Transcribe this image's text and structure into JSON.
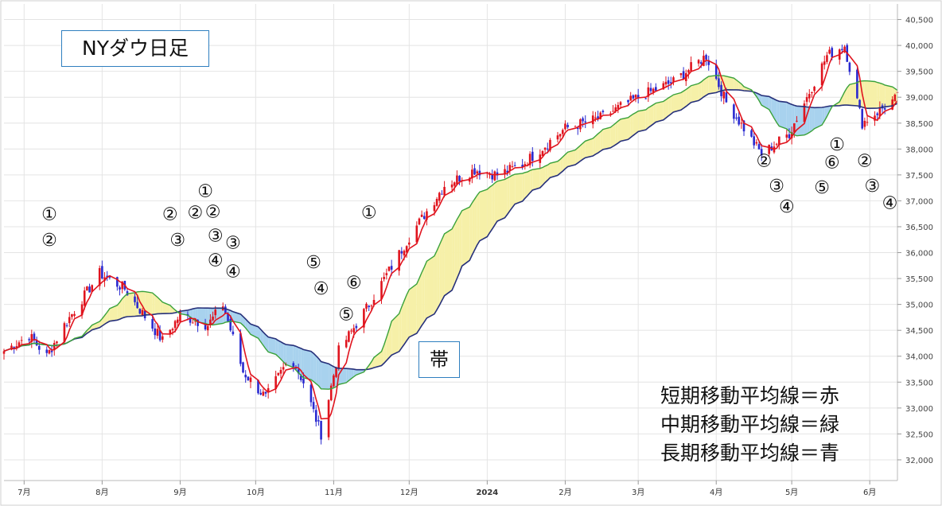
{
  "title": "NYダウ日足",
  "band_label": "帯",
  "legend_lines": [
    "短期移動平均線＝赤",
    "中期移動平均線＝緑",
    "長期移動平均線＝青"
  ],
  "colors": {
    "short_ma": "#e0141e",
    "mid_ma": "#3aa23a",
    "long_ma": "#26307a",
    "candle_up": "#e0141e",
    "candle_down": "#2a2ad0",
    "band_bull": "#f6f0a8",
    "band_bear": "#a8d2ee"
  },
  "chart_data": {
    "type": "candlestick",
    "x_ticks": [
      "7月",
      "8月",
      "9月",
      "10月",
      "11月",
      "12月",
      "2024",
      "2月",
      "3月",
      "4月",
      "5月",
      "6月"
    ],
    "y_ticks": [
      "40,500",
      "40,000",
      "39,500",
      "39,000",
      "38,500",
      "38,000",
      "37,500",
      "37,000",
      "36,500",
      "36,000",
      "35,500",
      "35,000",
      "34,500",
      "34,000",
      "33,500",
      "33,000",
      "32,500",
      "32,000"
    ],
    "ylim": [
      31600,
      40800
    ],
    "x_range": [
      "2023-06-23",
      "2024-06-12"
    ],
    "close_anchors": [
      [
        "2023-06-23",
        34100
      ],
      [
        "2023-07-03",
        34400
      ],
      [
        "2023-07-10",
        34000
      ],
      [
        "2023-07-17",
        34600
      ],
      [
        "2023-07-31",
        35600
      ],
      [
        "2023-08-10",
        35300
      ],
      [
        "2023-08-25",
        34300
      ],
      [
        "2023-09-01",
        34800
      ],
      [
        "2023-09-12",
        34600
      ],
      [
        "2023-09-18",
        35000
      ],
      [
        "2023-09-26",
        33700
      ],
      [
        "2023-10-05",
        33200
      ],
      [
        "2023-10-15",
        34000
      ],
      [
        "2023-10-20",
        33500
      ],
      [
        "2023-10-27",
        32500
      ],
      [
        "2023-11-03",
        34100
      ],
      [
        "2023-11-15",
        35000
      ],
      [
        "2023-12-01",
        36300
      ],
      [
        "2023-12-15",
        37300
      ],
      [
        "2023-12-27",
        37600
      ],
      [
        "2024-01-05",
        37500
      ],
      [
        "2024-01-15",
        37700
      ],
      [
        "2024-02-01",
        38400
      ],
      [
        "2024-02-15",
        38600
      ],
      [
        "2024-03-01",
        39000
      ],
      [
        "2024-03-15",
        39300
      ],
      [
        "2024-03-28",
        39800
      ],
      [
        "2024-04-05",
        38900
      ],
      [
        "2024-04-19",
        37900
      ],
      [
        "2024-04-30",
        38300
      ],
      [
        "2024-05-15",
        39800
      ],
      [
        "2024-05-22",
        40000
      ],
      [
        "2024-05-29",
        38500
      ],
      [
        "2024-06-12",
        39000
      ]
    ],
    "annotations": [
      {
        "text": "①",
        "date": "2023-07-11",
        "price": 36750
      },
      {
        "text": "②",
        "date": "2023-07-11",
        "price": 36250
      },
      {
        "text": "②",
        "date": "2023-08-28",
        "price": 36750
      },
      {
        "text": "③",
        "date": "2023-08-31",
        "price": 36250
      },
      {
        "text": "②",
        "date": "2023-09-07",
        "price": 36780
      },
      {
        "text": "①",
        "date": "2023-09-11",
        "price": 37200
      },
      {
        "text": "②",
        "date": "2023-09-14",
        "price": 36800
      },
      {
        "text": "③",
        "date": "2023-09-15",
        "price": 36340
      },
      {
        "text": "③",
        "date": "2023-09-22",
        "price": 36200
      },
      {
        "text": "④",
        "date": "2023-09-15",
        "price": 35860
      },
      {
        "text": "④",
        "date": "2023-09-22",
        "price": 35650
      },
      {
        "text": "⑤",
        "date": "2023-10-24",
        "price": 35820
      },
      {
        "text": "④",
        "date": "2023-10-27",
        "price": 35320
      },
      {
        "text": "⑥",
        "date": "2023-11-09",
        "price": 35430
      },
      {
        "text": "⑤",
        "date": "2023-11-06",
        "price": 34820
      },
      {
        "text": "①",
        "date": "2023-11-15",
        "price": 36780
      },
      {
        "text": "②",
        "date": "2024-04-20",
        "price": 37780
      },
      {
        "text": "③",
        "date": "2024-04-25",
        "price": 37300
      },
      {
        "text": "④",
        "date": "2024-04-29",
        "price": 36900
      },
      {
        "text": "①",
        "date": "2024-05-19",
        "price": 38100
      },
      {
        "text": "⑥",
        "date": "2024-05-17",
        "price": 37750
      },
      {
        "text": "⑤",
        "date": "2024-05-13",
        "price": 37270
      },
      {
        "text": "②",
        "date": "2024-05-30",
        "price": 37780
      },
      {
        "text": "③",
        "date": "2024-06-02",
        "price": 37300
      },
      {
        "text": "④",
        "date": "2024-06-09",
        "price": 36970
      }
    ]
  }
}
